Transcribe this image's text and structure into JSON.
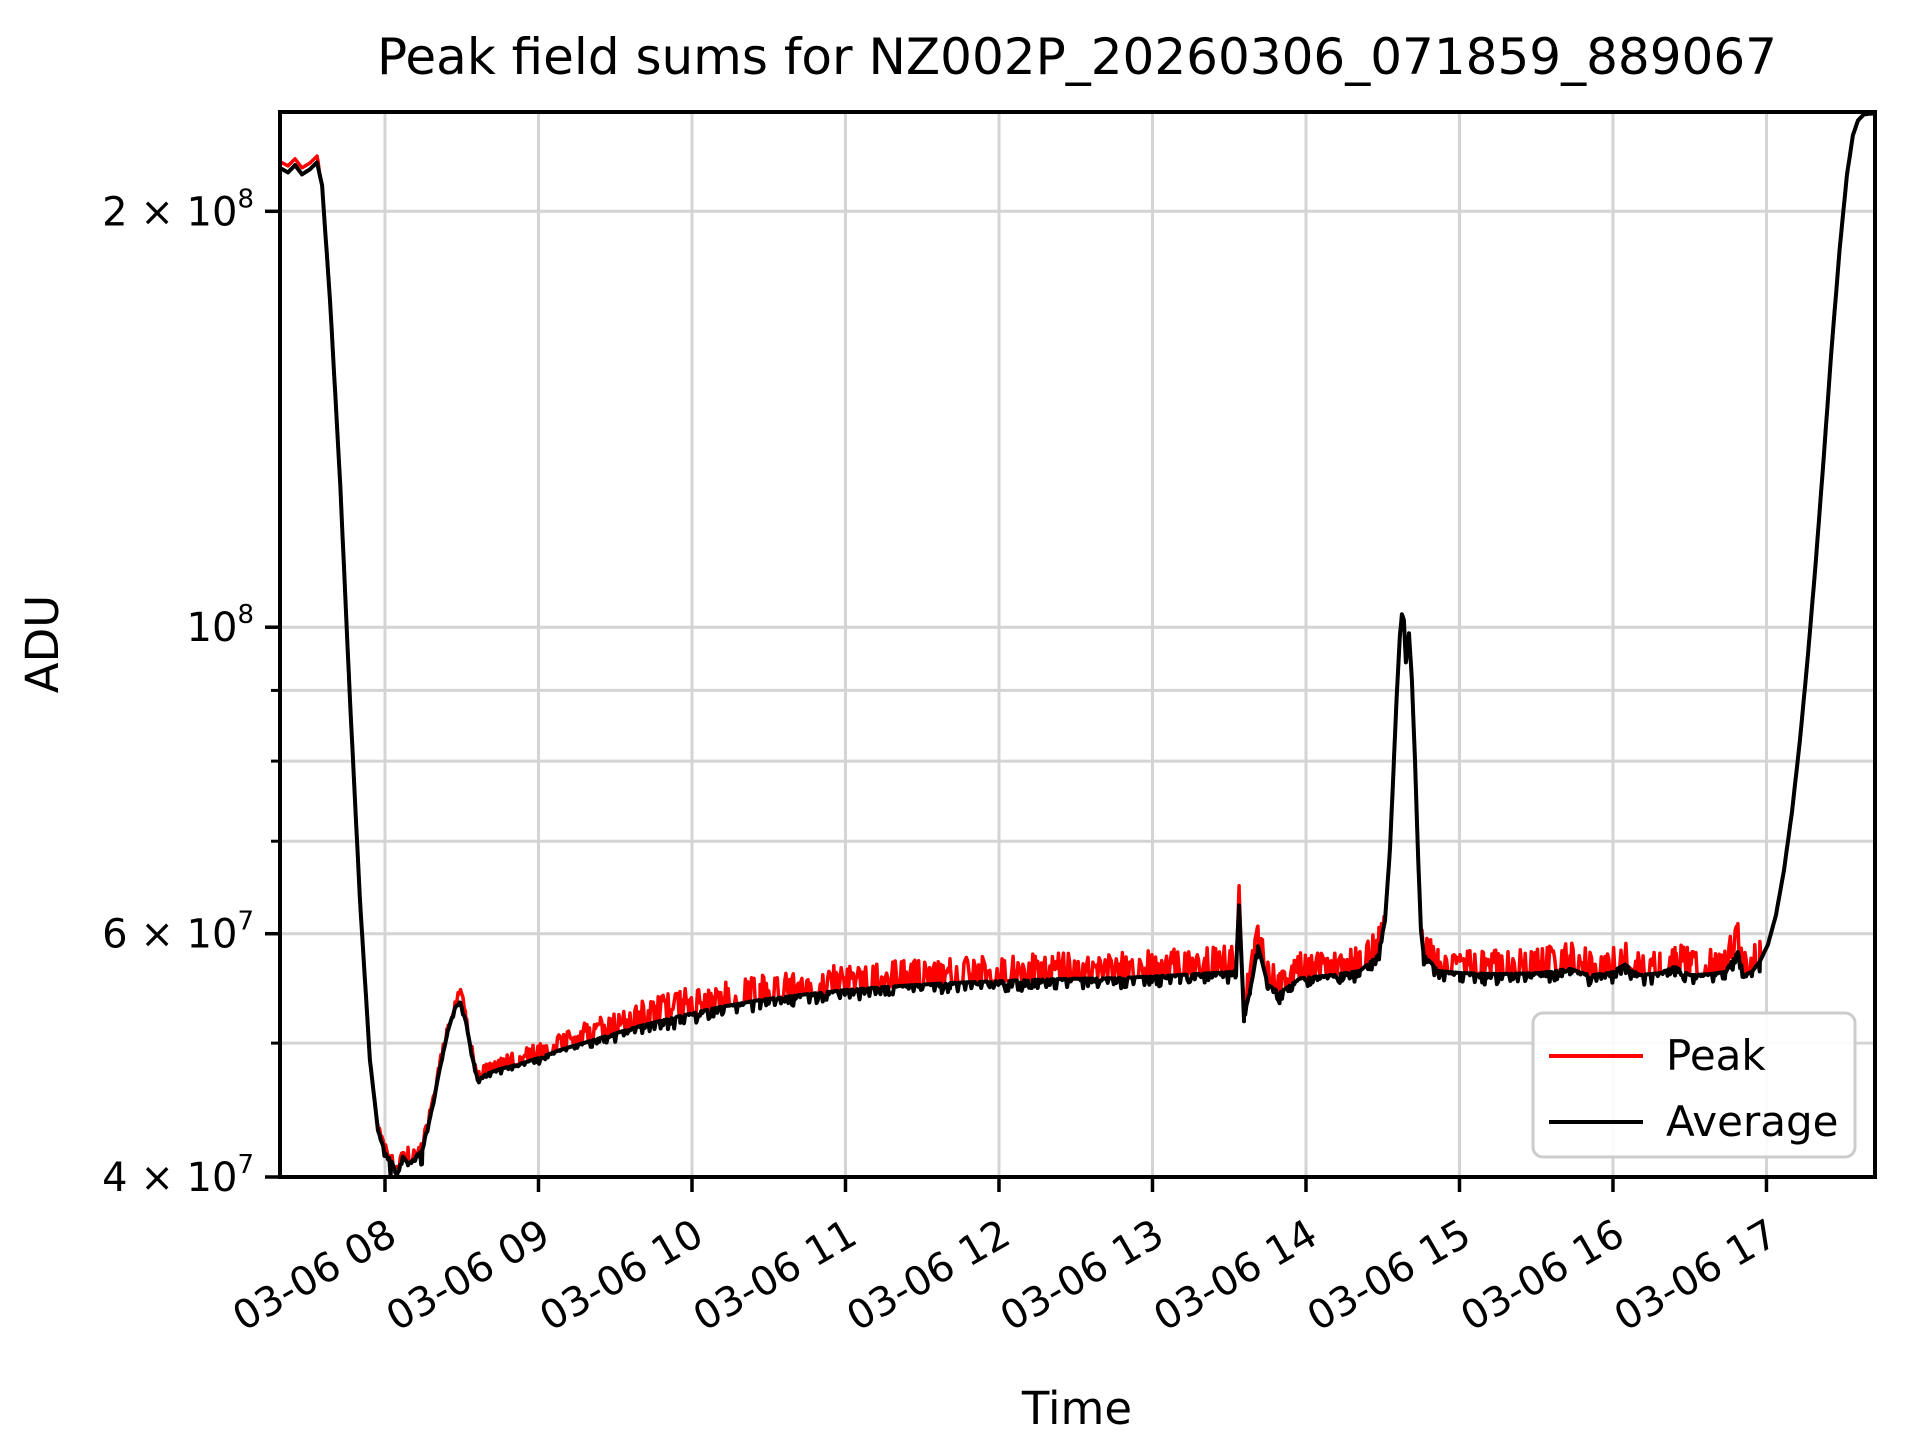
{
  "chart_data": {
    "type": "line",
    "title": "Peak field sums for NZ002P_20260306_071859_889067",
    "xlabel": "Time",
    "ylabel": "ADU",
    "x_axis": {
      "unit": "hours of 2026-03-06",
      "range": [
        7.316,
        17.707
      ],
      "ticks": [
        {
          "hour": 8,
          "label": "03-06 08"
        },
        {
          "hour": 9,
          "label": "03-06 09"
        },
        {
          "hour": 10,
          "label": "03-06 10"
        },
        {
          "hour": 11,
          "label": "03-06 11"
        },
        {
          "hour": 12,
          "label": "03-06 12"
        },
        {
          "hour": 13,
          "label": "03-06 13"
        },
        {
          "hour": 14,
          "label": "03-06 14"
        },
        {
          "hour": 15,
          "label": "03-06 15"
        },
        {
          "hour": 16,
          "label": "03-06 16"
        },
        {
          "hour": 17,
          "label": "03-06 17"
        }
      ],
      "label_rotation_deg": 30,
      "grid": true
    },
    "y_axis": {
      "scale": "log",
      "range": [
        40000000.0,
        236000000.0
      ],
      "major_ticks": [
        {
          "value": 40000000.0,
          "mantissa": "4 × 10",
          "exp": "7"
        },
        {
          "value": 60000000.0,
          "mantissa": "6 × 10",
          "exp": "7"
        },
        {
          "value": 100000000.0,
          "mantissa": "10",
          "exp": "8"
        },
        {
          "value": 200000000.0,
          "mantissa": "2 × 10",
          "exp": "8"
        }
      ],
      "minor_ticks": [
        50000000.0,
        70000000.0,
        80000000.0,
        90000000.0
      ],
      "grid": true
    },
    "legend": {
      "position": "lower right",
      "entries": [
        {
          "label": "Peak",
          "color": "#ff0000"
        },
        {
          "label": "Average",
          "color": "#000000"
        }
      ]
    },
    "x_hours": [
      7.316,
      7.368,
      7.414,
      7.459,
      7.511,
      7.557,
      7.59,
      7.642,
      7.707,
      7.772,
      7.837,
      7.902,
      7.954,
      8.0,
      8.046,
      8.078,
      8.117,
      8.15,
      8.195,
      8.241,
      8.293,
      8.358,
      8.41,
      8.456,
      8.489,
      8.528,
      8.567,
      8.606,
      8.658,
      8.749,
      8.879,
      8.997,
      9.14,
      9.401,
      9.661,
      9.922,
      10.182,
      10.443,
      10.704,
      11.003,
      11.355,
      11.681,
      12.007,
      12.397,
      12.788,
      13.179,
      13.505,
      13.544,
      13.564,
      13.596,
      13.635,
      13.687,
      13.752,
      13.83,
      13.961,
      14.156,
      14.352,
      14.469,
      14.515,
      14.547,
      14.573,
      14.593,
      14.612,
      14.625,
      14.638,
      14.651,
      14.671,
      14.69,
      14.71,
      14.729,
      14.749,
      14.768,
      14.807,
      14.86,
      15.003,
      15.264,
      15.524,
      15.72,
      15.85,
      15.98,
      16.078,
      16.176,
      16.306,
      16.404,
      16.501,
      16.632,
      16.729,
      16.814,
      16.853,
      16.905,
      16.957,
      17.009,
      17.062,
      17.114,
      17.166,
      17.218,
      17.27,
      17.322,
      17.374,
      17.426,
      17.479,
      17.524,
      17.563,
      17.596,
      17.635,
      17.707
    ],
    "series": [
      {
        "name": "Peak",
        "color": "#ff0000",
        "values": [
          216000000.0,
          214500000.0,
          217000000.0,
          213800000.0,
          215500000.0,
          218000000.0,
          208800000.0,
          172400000.0,
          127800000.0,
          88550000.0,
          63460000.0,
          48610000.0,
          43250000.0,
          41690000.0,
          41000000.0,
          40130000.0,
          41410000.0,
          40870000.0,
          41280000.0,
          41970000.0,
          44130000.0,
          47970000.0,
          51100000.0,
          53010000.0,
          54500000.0,
          51790000.0,
          48940000.0,
          47010000.0,
          47490000.0,
          47890000.0,
          48290000.0,
          48770000.0,
          49430000.0,
          50430000.0,
          51450000.0,
          52310000.0,
          53100000.0,
          53730000.0,
          54180000.0,
          54630000.0,
          55000000.0,
          55270000.0,
          55450000.0,
          55640000.0,
          55730000.0,
          56010000.0,
          56290000.0,
          56400000.0,
          64000000.0,
          52400000.0,
          54500000.0,
          58800000.0,
          55100000.0,
          54400000.0,
          55700000.0,
          56000000.0,
          56400000.0,
          57870000.0,
          61380000.0,
          68980000.0,
          80130000.0,
          90050000.0,
          98670000.0,
          102200000.0,
          101200000.0,
          94300000.0,
          99000000.0,
          91600000.0,
          80100000.0,
          69000000.0,
          60300000.0,
          57900000.0,
          57300000.0,
          56400000.0,
          56200000.0,
          56100000.0,
          56200000.0,
          56600000.0,
          56000000.0,
          56200000.0,
          57000000.0,
          56000000.0,
          56200000.0,
          56800000.0,
          56000000.0,
          56100000.0,
          56300000.0,
          59000000.0,
          56000000.0,
          56300000.0,
          57300000.0,
          58900000.0,
          61900000.0,
          66700000.0,
          73500000.0,
          82800000.0,
          95400000.0,
          111800000.0,
          133200000.0,
          160100000.0,
          189000000.0,
          212400000.0,
          227000000.0,
          232700000.0,
          235100000.0,
          235500000.0
        ],
        "rendering": "average baseline plus dense upward noise spikes in flat regions"
      },
      {
        "name": "Average",
        "color": "#000000",
        "values": [
          215000000.0,
          213400000.0,
          216000000.0,
          212700000.0,
          214500000.0,
          217000000.0,
          208800000.0,
          172400000.0,
          127800000.0,
          88550000.0,
          63460000.0,
          48610000.0,
          43250000.0,
          41690000.0,
          41000000.0,
          40130000.0,
          41410000.0,
          40870000.0,
          41280000.0,
          41970000.0,
          44130000.0,
          47970000.0,
          51100000.0,
          53010000.0,
          53630000.0,
          51790000.0,
          48940000.0,
          47010000.0,
          47490000.0,
          47890000.0,
          48290000.0,
          48770000.0,
          49430000.0,
          50430000.0,
          51450000.0,
          52310000.0,
          53100000.0,
          53730000.0,
          54180000.0,
          54630000.0,
          55000000.0,
          55270000.0,
          55450000.0,
          55640000.0,
          55730000.0,
          56010000.0,
          56290000.0,
          56400000.0,
          62900000.0,
          52400000.0,
          54500000.0,
          58800000.0,
          55100000.0,
          54400000.0,
          55700000.0,
          56000000.0,
          56400000.0,
          57870000.0,
          61380000.0,
          68980000.0,
          80130000.0,
          90050000.0,
          98670000.0,
          102200000.0,
          101200000.0,
          94300000.0,
          99000000.0,
          91600000.0,
          80100000.0,
          69000000.0,
          60300000.0,
          57900000.0,
          57300000.0,
          56400000.0,
          56200000.0,
          56100000.0,
          56200000.0,
          56600000.0,
          56000000.0,
          56200000.0,
          57000000.0,
          56000000.0,
          56200000.0,
          56800000.0,
          56000000.0,
          56100000.0,
          56300000.0,
          58200000.0,
          56000000.0,
          56300000.0,
          57300000.0,
          58900000.0,
          61900000.0,
          66700000.0,
          73500000.0,
          82800000.0,
          95400000.0,
          111800000.0,
          133200000.0,
          160100000.0,
          189000000.0,
          212400000.0,
          227000000.0,
          232700000.0,
          235100000.0,
          235500000.0
        ]
      }
    ],
    "render_noise": {
      "seed": 889067,
      "spike_region": [
        7.95,
        16.96
      ],
      "spike_ramp": [
        8.55,
        9.8
      ],
      "spike_max_dex": 0.019,
      "spike_density": 0.5,
      "black_jitter_dex": 0.008,
      "value_cutoff_dex": 7.84,
      "slope_cutoff": 1.6
    },
    "style": {
      "grid_color": "#d4d4d4",
      "spine_color": "#000000",
      "legend_edge_color": "#cccccc",
      "background": "#ffffff"
    }
  }
}
